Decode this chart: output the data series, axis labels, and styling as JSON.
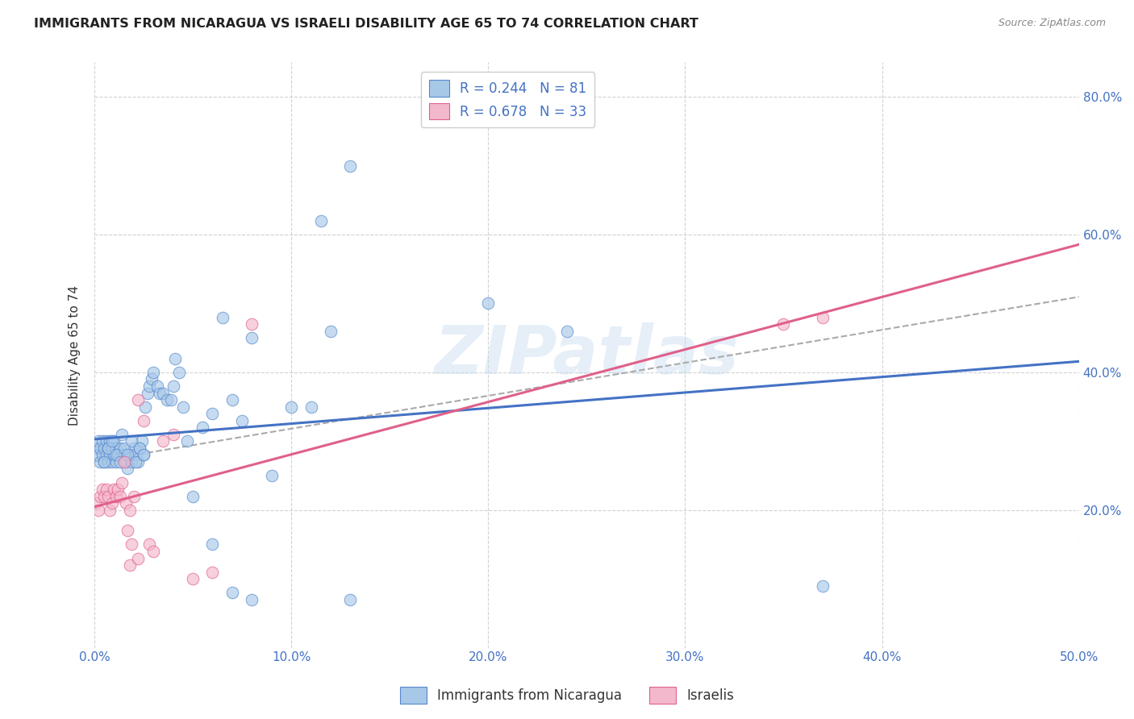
{
  "title": "IMMIGRANTS FROM NICARAGUA VS ISRAELI DISABILITY AGE 65 TO 74 CORRELATION CHART",
  "source": "Source: ZipAtlas.com",
  "ylabel": "Disability Age 65 to 74",
  "xlim": [
    0.0,
    0.5
  ],
  "ylim": [
    0.0,
    0.85
  ],
  "xticks": [
    0.0,
    0.1,
    0.2,
    0.3,
    0.4,
    0.5
  ],
  "xticklabels": [
    "0.0%",
    "10.0%",
    "20.0%",
    "30.0%",
    "40.0%",
    "50.0%"
  ],
  "yticks": [
    0.2,
    0.4,
    0.6,
    0.8
  ],
  "yticklabels": [
    "20.0%",
    "40.0%",
    "60.0%",
    "80.0%"
  ],
  "grid_color": "#cccccc",
  "background_color": "#ffffff",
  "blue_color": "#a8c8e8",
  "pink_color": "#f4b8cc",
  "blue_edge_color": "#5588cc",
  "pink_edge_color": "#e06090",
  "blue_line_color": "#4472c4",
  "pink_line_color": "#e0608a",
  "dashed_line_color": "#aaaaaa",
  "r_blue": 0.244,
  "n_blue": 81,
  "r_pink": 0.678,
  "n_pink": 33,
  "legend_label_blue": "Immigrants from Nicaragua",
  "legend_label_pink": "Israelis",
  "watermark": "ZIPatlas",
  "blue_x": [
    0.001,
    0.002,
    0.002,
    0.003,
    0.003,
    0.004,
    0.004,
    0.005,
    0.005,
    0.006,
    0.006,
    0.007,
    0.007,
    0.008,
    0.008,
    0.009,
    0.009,
    0.01,
    0.01,
    0.011,
    0.011,
    0.012,
    0.013,
    0.014,
    0.015,
    0.016,
    0.017,
    0.018,
    0.019,
    0.02,
    0.021,
    0.022,
    0.023,
    0.024,
    0.025,
    0.026,
    0.027,
    0.028,
    0.029,
    0.03,
    0.032,
    0.033,
    0.035,
    0.037,
    0.039,
    0.04,
    0.041,
    0.043,
    0.045,
    0.047,
    0.05,
    0.055,
    0.06,
    0.065,
    0.07,
    0.075,
    0.08,
    0.09,
    0.1,
    0.11,
    0.12,
    0.13,
    0.005,
    0.007,
    0.009,
    0.011,
    0.013,
    0.015,
    0.017,
    0.019,
    0.021,
    0.023,
    0.025,
    0.2,
    0.24,
    0.115,
    0.13,
    0.37,
    0.06,
    0.07,
    0.08
  ],
  "blue_y": [
    0.29,
    0.28,
    0.3,
    0.27,
    0.29,
    0.28,
    0.3,
    0.27,
    0.29,
    0.28,
    0.3,
    0.27,
    0.29,
    0.28,
    0.3,
    0.27,
    0.29,
    0.28,
    0.3,
    0.27,
    0.29,
    0.28,
    0.29,
    0.31,
    0.28,
    0.27,
    0.26,
    0.28,
    0.27,
    0.29,
    0.28,
    0.27,
    0.29,
    0.3,
    0.28,
    0.35,
    0.37,
    0.38,
    0.39,
    0.4,
    0.38,
    0.37,
    0.37,
    0.36,
    0.36,
    0.38,
    0.42,
    0.4,
    0.35,
    0.3,
    0.22,
    0.32,
    0.34,
    0.48,
    0.36,
    0.33,
    0.45,
    0.25,
    0.35,
    0.35,
    0.46,
    0.07,
    0.27,
    0.29,
    0.3,
    0.28,
    0.27,
    0.29,
    0.28,
    0.3,
    0.27,
    0.29,
    0.28,
    0.5,
    0.46,
    0.62,
    0.7,
    0.09,
    0.15,
    0.08,
    0.07
  ],
  "pink_x": [
    0.001,
    0.002,
    0.003,
    0.004,
    0.005,
    0.006,
    0.007,
    0.008,
    0.009,
    0.01,
    0.011,
    0.012,
    0.013,
    0.014,
    0.015,
    0.016,
    0.017,
    0.018,
    0.019,
    0.02,
    0.022,
    0.025,
    0.028,
    0.03,
    0.035,
    0.04,
    0.05,
    0.06,
    0.08,
    0.018,
    0.022,
    0.35,
    0.37
  ],
  "pink_y": [
    0.21,
    0.2,
    0.22,
    0.23,
    0.22,
    0.23,
    0.22,
    0.2,
    0.21,
    0.23,
    0.22,
    0.23,
    0.22,
    0.24,
    0.27,
    0.21,
    0.17,
    0.2,
    0.15,
    0.22,
    0.36,
    0.33,
    0.15,
    0.14,
    0.3,
    0.31,
    0.1,
    0.11,
    0.47,
    0.12,
    0.13,
    0.47,
    0.48
  ]
}
